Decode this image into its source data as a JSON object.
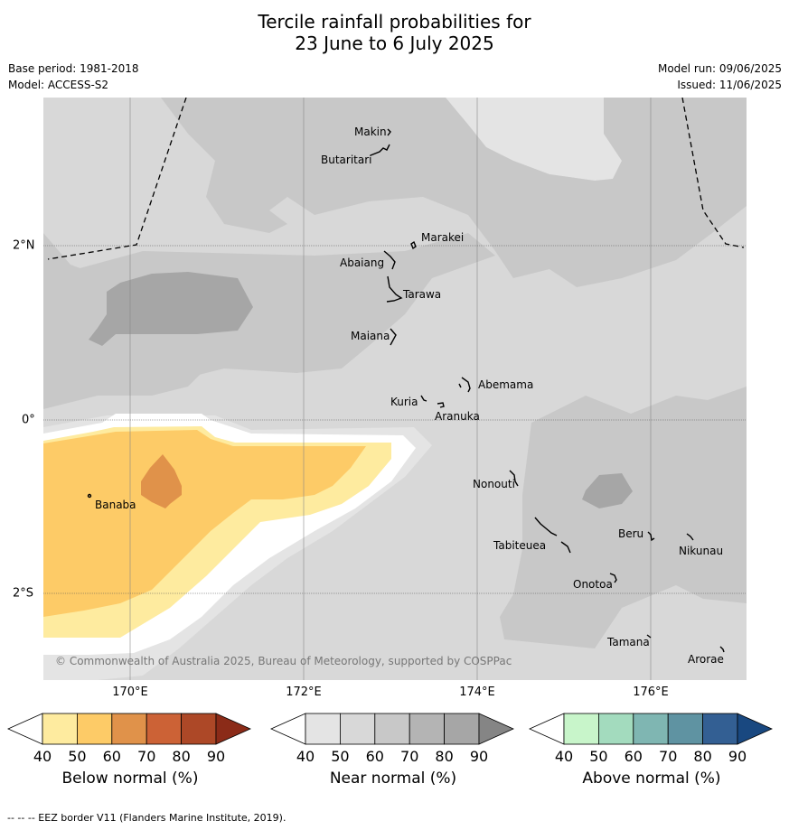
{
  "title": {
    "line1": "Tercile rainfall probabilities for",
    "line2": "23 June to 6 July 2025"
  },
  "meta": {
    "base_period": "Base period: 1981-2018",
    "model": "Model: ACCESS-S2",
    "model_run": "Model run: 09/06/2025",
    "issued": "Issued: 11/06/2025"
  },
  "map": {
    "lon_labels": [
      "170°E",
      "172°E",
      "174°E",
      "176°E"
    ],
    "lat_labels": [
      "2°N",
      "0°",
      "2°S"
    ],
    "islands": [
      "Makin",
      "Butaritari",
      "Marakei",
      "Abaiang",
      "Tarawa",
      "Maiana",
      "Abemama",
      "Kuria",
      "Aranuka",
      "Nonouti",
      "Banaba",
      "Tabiteuea",
      "Beru",
      "Nikunau",
      "Onotoa",
      "Tamana",
      "Arorae"
    ],
    "copyright": "© Commonwealth of Australia 2025, Bureau of Meteorology, supported by COSPPac",
    "colors": {
      "background": "#d8d8d8",
      "near_normal_light": "#e4e4e4",
      "near_normal_mid": "#c8c8c8",
      "near_normal_dark": "#a6a6a6",
      "below_40": "#feeb9f",
      "below_50": "#fdcb67",
      "below_60": "#e0924a"
    }
  },
  "colorbars": [
    {
      "title": "Below normal (%)",
      "ticks": [
        "40",
        "50",
        "60",
        "70",
        "80",
        "90"
      ],
      "colors": [
        "#ffffff",
        "#feeb9f",
        "#fdcb67",
        "#e0924a",
        "#cc6236",
        "#ad4827",
        "#8b2b18"
      ]
    },
    {
      "title": "Near normal (%)",
      "ticks": [
        "40",
        "50",
        "60",
        "70",
        "80",
        "90"
      ],
      "colors": [
        "#ffffff",
        "#e4e4e4",
        "#d8d8d8",
        "#c8c8c8",
        "#b4b4b4",
        "#a6a6a6",
        "#858585"
      ]
    },
    {
      "title": "Above normal (%)",
      "ticks": [
        "40",
        "50",
        "60",
        "70",
        "80",
        "90"
      ],
      "colors": [
        "#ffffff",
        "#c8f5ca",
        "#a3dbbe",
        "#7fb6b2",
        "#5f93a2",
        "#335f93",
        "#194880"
      ]
    }
  ],
  "footer": "--  --  -- EEZ border V11 (Flanders Marine Institute, 2019)."
}
